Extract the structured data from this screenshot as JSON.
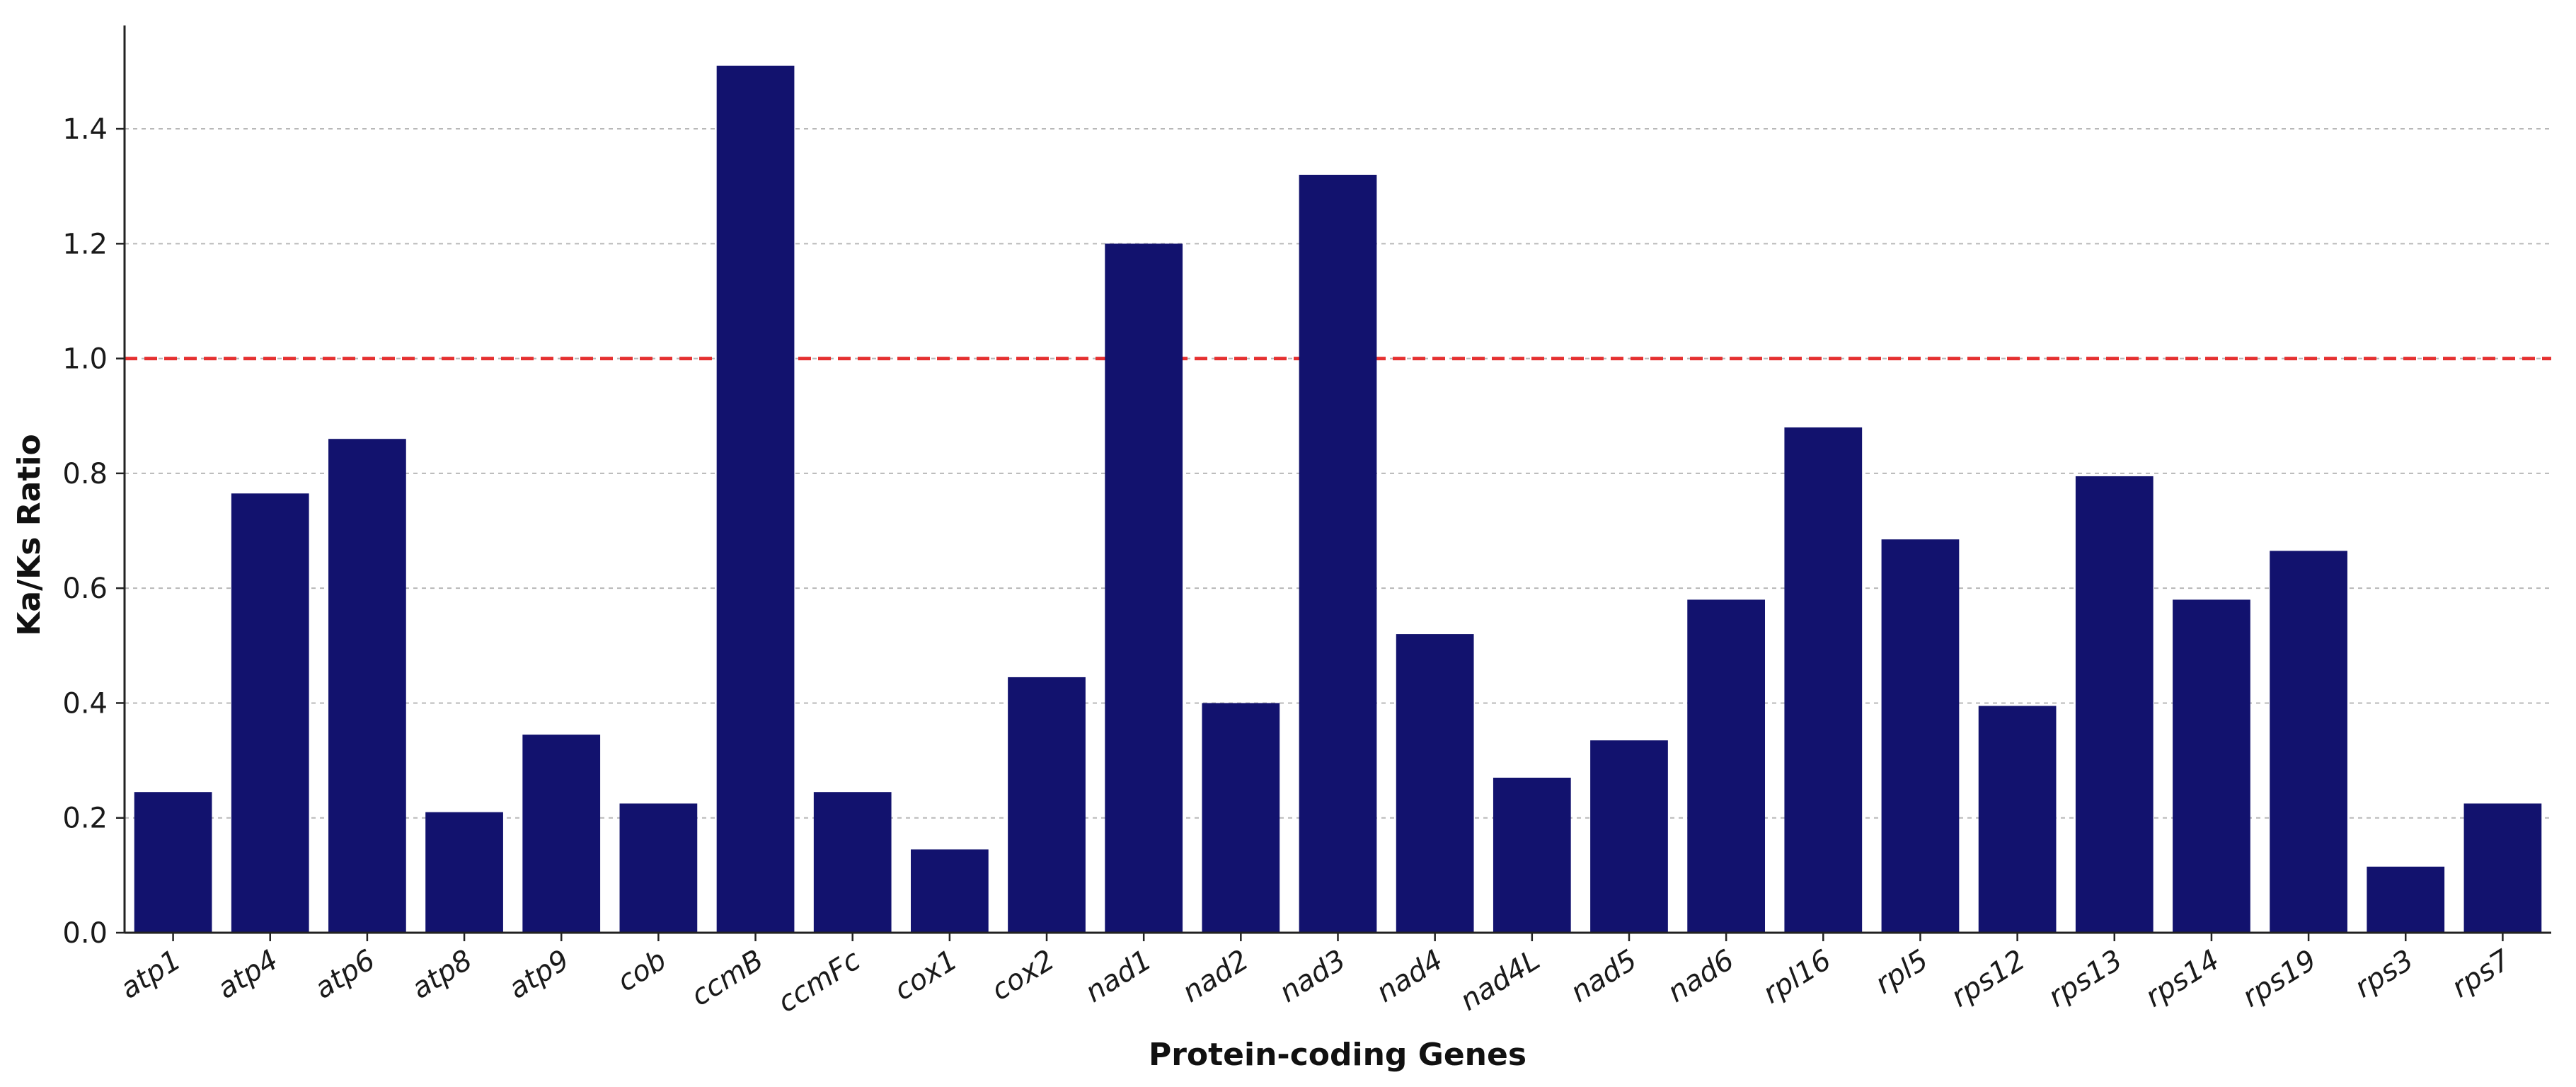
{
  "chart_data": {
    "type": "bar",
    "title": "",
    "xlabel": "Protein-coding Genes",
    "ylabel": "Ka/Ks Ratio",
    "categories": [
      "atp1",
      "atp4",
      "atp6",
      "atp8",
      "atp9",
      "cob",
      "ccmB",
      "ccmFc",
      "cox1",
      "cox2",
      "nad1",
      "nad2",
      "nad3",
      "nad4",
      "nad4L",
      "nad5",
      "nad6",
      "rpl16",
      "rpl5",
      "rps12",
      "rps13",
      "rps14",
      "rps19",
      "rps3",
      "rps7"
    ],
    "values": [
      0.245,
      0.765,
      0.86,
      0.21,
      0.345,
      0.225,
      1.51,
      0.245,
      0.145,
      0.445,
      1.2,
      0.4,
      1.32,
      0.52,
      0.27,
      0.335,
      0.58,
      0.88,
      0.685,
      0.395,
      0.795,
      0.58,
      0.665,
      0.115,
      0.225
    ],
    "ylim": [
      0,
      1.58
    ],
    "yticks": [
      "0.0",
      "0.2",
      "0.4",
      "0.6",
      "0.8",
      "1.0",
      "1.2",
      "1.4"
    ],
    "grid": "horizontal dashed",
    "reference_line": {
      "value": 1.0,
      "style": "dashed",
      "color": "#e53030"
    },
    "bar_color": "#12126e",
    "category_label_style": "italic, rotated"
  }
}
